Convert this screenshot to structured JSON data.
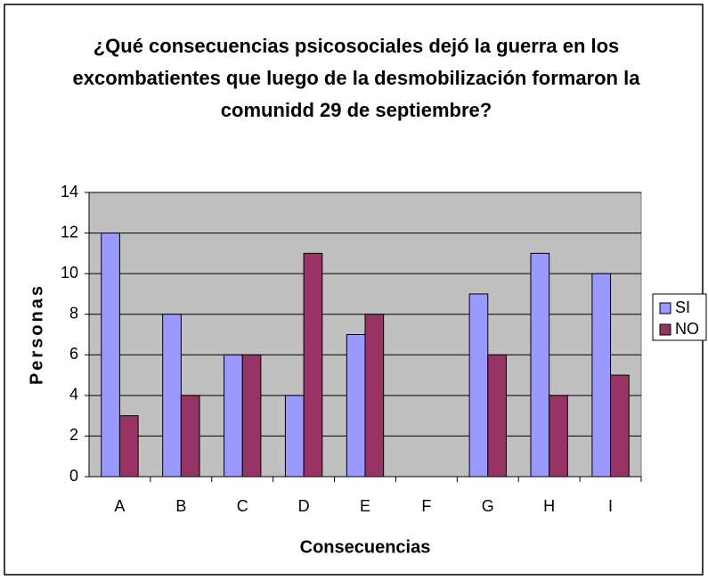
{
  "chart_data": {
    "type": "bar",
    "title": "¿Qué consecuencias psicosociales dejó la guerra en los excombatientes que luego de la desmobilización formaron la comunidd 29 de septiembre?",
    "x_label": "Consecuencias",
    "y_label": "Personas",
    "categories": [
      "A",
      "B",
      "C",
      "D",
      "E",
      "F",
      "G",
      "H",
      "I"
    ],
    "series": [
      {
        "name": "SI",
        "color": "#9999ff",
        "values": [
          12,
          8,
          6,
          4,
          7,
          0,
          9,
          11,
          10
        ]
      },
      {
        "name": "NO",
        "color": "#993366",
        "values": [
          3,
          4,
          6,
          11,
          8,
          0,
          6,
          4,
          5
        ]
      }
    ],
    "ylim": [
      0,
      14
    ],
    "yticks": [
      0,
      2,
      4,
      6,
      8,
      10,
      12,
      14
    ],
    "grid": true,
    "legend": "right"
  }
}
